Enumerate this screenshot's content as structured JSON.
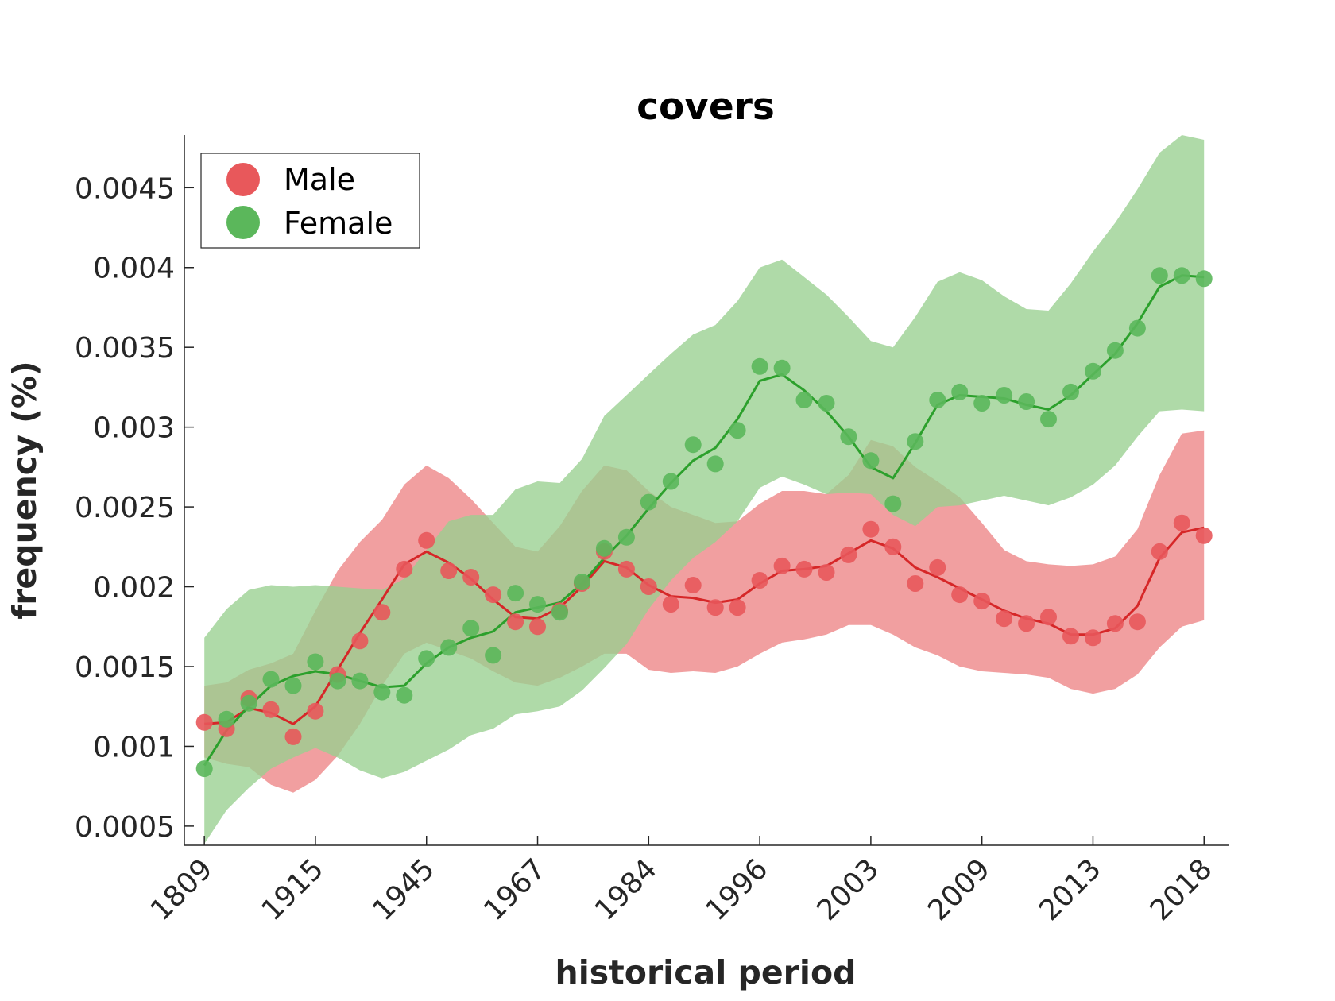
{
  "chart_data": {
    "type": "line",
    "title": "covers",
    "xlabel": "historical period",
    "ylabel": "frequency (%)",
    "ylim": [
      0.00038,
      0.00483
    ],
    "y_ticks": [
      "0.0005",
      "0.001",
      "0.0015",
      "0.002",
      "0.0025",
      "0.003",
      "0.0035",
      "0.004",
      "0.0045"
    ],
    "y_tick_values": [
      0.0005,
      0.001,
      0.0015,
      0.002,
      0.0025,
      0.003,
      0.0035,
      0.004,
      0.0045
    ],
    "x_tick_labels": [
      "1809",
      "1915",
      "1945",
      "1967",
      "1984",
      "1996",
      "2003",
      "2009",
      "2013",
      "2018"
    ],
    "x_tick_positions": [
      1,
      6,
      11,
      16,
      21,
      26,
      31,
      36,
      41,
      46
    ],
    "xlim": [
      0.1,
      47.1
    ],
    "legend": {
      "position": "top-left",
      "entries": [
        "Male",
        "Female"
      ]
    },
    "grid": false,
    "series": [
      {
        "name": "Male",
        "color": "#d62728",
        "marker_color": "#e8585b",
        "band_color": "#f09a9b",
        "points": [
          0.00115,
          0.00111,
          0.0013,
          0.00123,
          0.00106,
          0.00122,
          0.00145,
          0.00166,
          0.00184,
          0.00211,
          0.00229,
          0.0021,
          0.00206,
          0.00195,
          0.00178,
          0.00175,
          0.00185,
          0.00202,
          0.00222,
          0.00211,
          0.002,
          0.00189,
          0.00201,
          0.00187,
          0.00187,
          0.00204,
          0.00213,
          0.00211,
          0.00209,
          0.0022,
          0.00236,
          0.00225,
          0.00202,
          0.00212,
          0.00195,
          0.00191,
          0.0018,
          0.00177,
          0.00181,
          0.00169,
          0.00168,
          0.00177,
          0.00178,
          0.00222,
          0.0024,
          0.00232
        ],
        "line": [
          0.00114,
          0.00115,
          0.00124,
          0.00121,
          0.00114,
          0.00125,
          0.00148,
          0.00171,
          0.00192,
          0.00214,
          0.00222,
          0.00215,
          0.00205,
          0.00192,
          0.00181,
          0.0018,
          0.00187,
          0.002,
          0.00216,
          0.00212,
          0.00201,
          0.00194,
          0.00193,
          0.0019,
          0.00192,
          0.00202,
          0.0021,
          0.00211,
          0.00213,
          0.00221,
          0.00229,
          0.00224,
          0.00212,
          0.00206,
          0.00199,
          0.00192,
          0.00185,
          0.0018,
          0.00177,
          0.0017,
          0.0017,
          0.00174,
          0.00188,
          0.00218,
          0.00234,
          0.00237
        ],
        "band_upper": [
          0.00138,
          0.0014,
          0.00148,
          0.00152,
          0.00158,
          0.00185,
          0.0021,
          0.00228,
          0.00242,
          0.00264,
          0.00276,
          0.00268,
          0.00255,
          0.0024,
          0.00225,
          0.00222,
          0.00238,
          0.0026,
          0.00276,
          0.00273,
          0.0026,
          0.0025,
          0.00245,
          0.0024,
          0.00241,
          0.00252,
          0.0026,
          0.0026,
          0.00258,
          0.0027,
          0.00292,
          0.00288,
          0.00275,
          0.00266,
          0.00256,
          0.0024,
          0.00223,
          0.00216,
          0.00214,
          0.00213,
          0.00214,
          0.00219,
          0.00236,
          0.0027,
          0.00296,
          0.00298
        ],
        "band_lower": [
          0.00093,
          0.00089,
          0.00087,
          0.00076,
          0.00071,
          0.00079,
          0.00094,
          0.00114,
          0.00138,
          0.00158,
          0.00165,
          0.0016,
          0.00155,
          0.00147,
          0.0014,
          0.00138,
          0.00143,
          0.0015,
          0.00158,
          0.00158,
          0.00148,
          0.00146,
          0.00147,
          0.00146,
          0.0015,
          0.00158,
          0.00165,
          0.00167,
          0.0017,
          0.00176,
          0.00176,
          0.0017,
          0.00162,
          0.00157,
          0.0015,
          0.00147,
          0.00146,
          0.00145,
          0.00143,
          0.00136,
          0.00133,
          0.00136,
          0.00145,
          0.00162,
          0.00175,
          0.00179
        ]
      },
      {
        "name": "Female",
        "color": "#2ca02c",
        "marker_color": "#5bb75b",
        "band_color": "#98d08f",
        "points": [
          0.00086,
          0.00117,
          0.00127,
          0.00142,
          0.00138,
          0.00153,
          0.00141,
          0.00141,
          0.00134,
          0.00132,
          0.00155,
          0.00162,
          0.00174,
          0.00157,
          0.00196,
          0.00189,
          0.00184,
          0.00203,
          0.00224,
          0.00231,
          0.00253,
          0.00266,
          0.00289,
          0.00277,
          0.00298,
          0.00338,
          0.00337,
          0.00317,
          0.00315,
          0.00294,
          0.00279,
          0.00252,
          0.00291,
          0.00317,
          0.00322,
          0.00315,
          0.0032,
          0.00316,
          0.00305,
          0.00322,
          0.00335,
          0.00348,
          0.00362,
          0.00395,
          0.00395,
          0.00393
        ],
        "line": [
          0.00088,
          0.0011,
          0.00125,
          0.00138,
          0.00144,
          0.00147,
          0.00145,
          0.00141,
          0.00137,
          0.00138,
          0.00152,
          0.00162,
          0.00168,
          0.00172,
          0.00184,
          0.00187,
          0.0019,
          0.00202,
          0.00218,
          0.00232,
          0.00249,
          0.00265,
          0.00279,
          0.00287,
          0.00305,
          0.00329,
          0.00333,
          0.00323,
          0.0031,
          0.00294,
          0.00275,
          0.00268,
          0.0029,
          0.00314,
          0.0032,
          0.00319,
          0.00318,
          0.00314,
          0.00311,
          0.0032,
          0.00333,
          0.00346,
          0.00365,
          0.00388,
          0.00395,
          0.00394
        ],
        "band_upper": [
          0.00168,
          0.00186,
          0.00198,
          0.00201,
          0.002,
          0.00201,
          0.002,
          0.00199,
          0.00198,
          0.00205,
          0.00223,
          0.00241,
          0.00245,
          0.00245,
          0.00261,
          0.00266,
          0.00265,
          0.0028,
          0.00307,
          0.0032,
          0.00333,
          0.00346,
          0.00358,
          0.00364,
          0.00379,
          0.004,
          0.00405,
          0.00394,
          0.00383,
          0.00369,
          0.00354,
          0.0035,
          0.00369,
          0.00391,
          0.00397,
          0.00392,
          0.00382,
          0.00374,
          0.00373,
          0.0039,
          0.0041,
          0.00428,
          0.00449,
          0.00472,
          0.00483,
          0.0048
        ],
        "band_lower": [
          0.00039,
          0.0006,
          0.00074,
          0.00086,
          0.00093,
          0.00099,
          0.00093,
          0.00085,
          0.0008,
          0.00084,
          0.00091,
          0.00098,
          0.00107,
          0.00111,
          0.0012,
          0.00122,
          0.00125,
          0.00135,
          0.00149,
          0.00164,
          0.00186,
          0.00204,
          0.00218,
          0.00228,
          0.00241,
          0.00262,
          0.00269,
          0.00264,
          0.00258,
          0.00259,
          0.00258,
          0.00245,
          0.00238,
          0.0025,
          0.00251,
          0.00254,
          0.00257,
          0.00254,
          0.00251,
          0.00256,
          0.00264,
          0.00276,
          0.00294,
          0.0031,
          0.00311,
          0.0031
        ]
      }
    ]
  }
}
